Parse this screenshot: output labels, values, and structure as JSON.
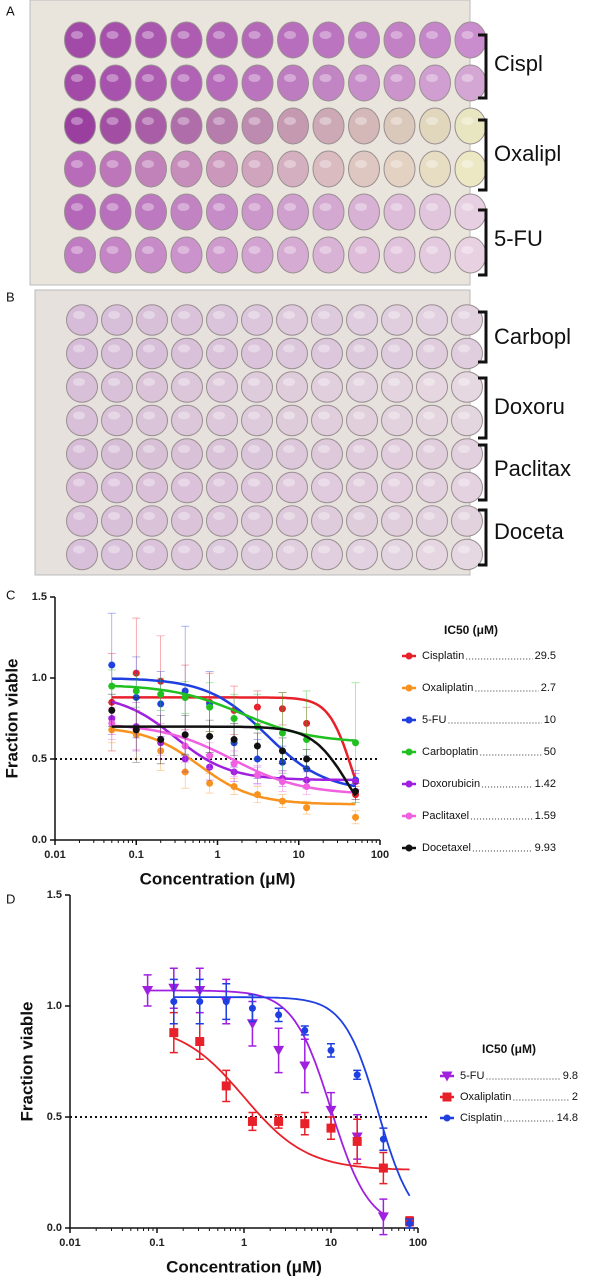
{
  "plates": [
    {
      "panel": "A",
      "labels": [
        "Cispl",
        "Oxalipl",
        "5-FU"
      ]
    },
    {
      "panel": "B",
      "labels": [
        "Carbopl",
        "Doxoru",
        "Paclitax",
        "Doceta"
      ]
    }
  ],
  "chart_data": [
    {
      "type": "scatter",
      "panel": "C",
      "x_label": "Concentration (μM)",
      "y_label": "Fraction viable",
      "legend_title": "IC50 (μM)",
      "xscale": "log",
      "xlim": [
        0.01,
        100
      ],
      "xticks": [
        0.01,
        0.1,
        1,
        10,
        100
      ],
      "ylim": [
        0,
        1.5
      ],
      "yticks": [
        {
          "value": 0,
          "label": "0.0"
        },
        {
          "value": 0.5,
          "label": "0.5"
        },
        {
          "value": 1,
          "label": "1.0"
        },
        {
          "value": 1.5,
          "label": "1.5"
        }
      ],
      "hline": 0.5,
      "legend": "right",
      "x": [
        0.05,
        0.1,
        0.2,
        0.4,
        0.8,
        1.6,
        3.1,
        6.3,
        12.5,
        50
      ],
      "series": [
        {
          "name": "Cisplatin",
          "ic50": 29.5,
          "color": "#e8202a",
          "marker": "circle",
          "values": [
            0.85,
            1.03,
            0.98,
            0.88,
            0.85,
            0.8,
            0.82,
            0.81,
            0.72,
            0.28
          ],
          "errors": [
            0.3,
            0.34,
            0.28,
            0.2,
            0.18,
            0.15,
            0.1,
            0.1,
            0.1,
            0.05
          ],
          "fit": {
            "top": 0.88,
            "bottom": 0,
            "mid": 45,
            "hill": 3
          }
        },
        {
          "name": "Oxaliplatin",
          "ic50": 2.7,
          "color": "#f7931e",
          "marker": "circle",
          "values": [
            0.68,
            0.65,
            0.55,
            0.42,
            0.35,
            0.33,
            0.28,
            0.24,
            0.2,
            0.14
          ],
          "errors": [
            0.08,
            0.15,
            0.12,
            0.1,
            0.06,
            0.05,
            0.05,
            0.04,
            0.04,
            0.04
          ],
          "fit": {
            "top": 0.7,
            "bottom": 0.22,
            "mid": 0.6,
            "hill": 1.3
          }
        },
        {
          "name": "5-FU",
          "ic50": 10,
          "color": "#1f3fe0",
          "marker": "circle",
          "values": [
            1.08,
            0.88,
            0.84,
            0.92,
            0.84,
            0.6,
            0.5,
            0.48,
            0.44,
            0.37
          ],
          "errors": [
            0.32,
            0.25,
            0.2,
            0.4,
            0.2,
            0.15,
            0.12,
            0.1,
            0.08,
            0.06
          ],
          "fit": {
            "top": 1.0,
            "bottom": 0.3,
            "mid": 4,
            "hill": 1.2
          }
        },
        {
          "name": "Carboplatin",
          "ic50": 50,
          "color": "#20c020",
          "marker": "circle",
          "values": [
            0.95,
            0.92,
            0.9,
            0.88,
            0.82,
            0.75,
            0.7,
            0.66,
            0.62,
            0.6
          ],
          "errors": [
            0.1,
            0.1,
            0.1,
            0.1,
            0.15,
            0.15,
            0.2,
            0.25,
            0.3,
            0.37
          ],
          "fit": {
            "top": 0.96,
            "bottom": 0.6,
            "mid": 2,
            "hill": 1
          }
        },
        {
          "name": "Doxorubicin",
          "ic50": 1.42,
          "color": "#a020e0",
          "marker": "circle",
          "values": [
            0.75,
            0.7,
            0.6,
            0.5,
            0.45,
            0.42,
            0.4,
            0.38,
            0.37,
            0.36
          ],
          "errors": [
            0.1,
            0.15,
            0.1,
            0.08,
            0.08,
            0.06,
            0.05,
            0.05,
            0.05,
            0.05
          ],
          "fit": {
            "top": 0.9,
            "bottom": 0.37,
            "mid": 0.3,
            "hill": 1.3
          }
        },
        {
          "name": "Paclitaxel",
          "ic50": 1.59,
          "color": "#f060e0",
          "marker": "circle",
          "values": [
            0.72,
            0.68,
            0.62,
            0.58,
            0.52,
            0.47,
            0.4,
            0.36,
            0.33,
            0.3
          ],
          "errors": [
            0.1,
            0.12,
            0.1,
            0.1,
            0.08,
            0.08,
            0.06,
            0.06,
            0.05,
            0.05
          ],
          "fit": {
            "top": 0.72,
            "bottom": 0.28,
            "mid": 1.5,
            "hill": 1
          }
        },
        {
          "name": "Docetaxel",
          "ic50": 9.93,
          "color": "#111111",
          "marker": "circle",
          "values": [
            0.8,
            0.68,
            0.62,
            0.65,
            0.64,
            0.62,
            0.58,
            0.55,
            0.5,
            0.3
          ],
          "errors": [
            0.1,
            0.2,
            0.15,
            0.12,
            0.1,
            0.1,
            0.08,
            0.08,
            0.06,
            0.05
          ],
          "fit": {
            "top": 0.7,
            "bottom": 0,
            "mid": 40,
            "hill": 2
          }
        }
      ]
    },
    {
      "type": "scatter",
      "panel": "D",
      "x_label": "Concentration (μM)",
      "y_label": "Fraction viable",
      "legend_title": "IC50 (μM)",
      "xscale": "log",
      "xlim": [
        0.01,
        100
      ],
      "xticks": [
        0.01,
        0.1,
        1,
        10,
        100
      ],
      "ylim": [
        0,
        1.5
      ],
      "yticks": [
        {
          "value": 0,
          "label": "0.0"
        },
        {
          "value": 0.5,
          "label": "0.5"
        },
        {
          "value": 1,
          "label": "1.0"
        },
        {
          "value": 1.5,
          "label": "1.5"
        }
      ],
      "hline": 0.5,
      "legend": "right",
      "series": [
        {
          "name": "5-FU",
          "ic50": 9.8,
          "color": "#a020e0",
          "marker": "triangle-down",
          "x": [
            0.078,
            0.156,
            0.31,
            0.625,
            1.25,
            2.5,
            5,
            10,
            20,
            40
          ],
          "values": [
            1.07,
            1.08,
            1.07,
            1.02,
            0.92,
            0.8,
            0.73,
            0.53,
            0.41,
            0.05
          ],
          "errors": [
            0.07,
            0.09,
            0.1,
            0.1,
            0.1,
            0.1,
            0.12,
            0.08,
            0.1,
            0.08
          ],
          "fit": {
            "top": 1.07,
            "bottom": 0,
            "mid": 10,
            "hill": 2
          }
        },
        {
          "name": "Oxaliplatin",
          "ic50": 2,
          "color": "#e8202a",
          "marker": "square",
          "x": [
            0.156,
            0.31,
            0.625,
            1.25,
            2.5,
            5,
            10,
            20,
            40,
            80
          ],
          "values": [
            0.88,
            0.84,
            0.64,
            0.48,
            0.48,
            0.47,
            0.45,
            0.39,
            0.27,
            0.03
          ],
          "errors": [
            0.09,
            0.08,
            0.07,
            0.04,
            0.03,
            0.05,
            0.05,
            0.1,
            0.07,
            0.02
          ],
          "fit": {
            "top": 0.92,
            "bottom": 0.26,
            "mid": 1,
            "hill": 1.2
          }
        },
        {
          "name": "Cisplatin",
          "ic50": 14.8,
          "color": "#1f3fe0",
          "marker": "circle",
          "x": [
            0.156,
            0.31,
            0.625,
            1.25,
            2.5,
            5,
            10,
            20,
            40,
            80
          ],
          "values": [
            1.02,
            1.02,
            1.02,
            0.99,
            0.96,
            0.89,
            0.8,
            0.69,
            0.4,
            0.02
          ],
          "errors": [
            0.1,
            0.1,
            0.08,
            0.06,
            0.03,
            0.02,
            0.03,
            0.02,
            0.05,
            0.02
          ],
          "fit": {
            "top": 1.04,
            "bottom": 0,
            "mid": 35,
            "hill": 2.2
          }
        }
      ]
    }
  ]
}
